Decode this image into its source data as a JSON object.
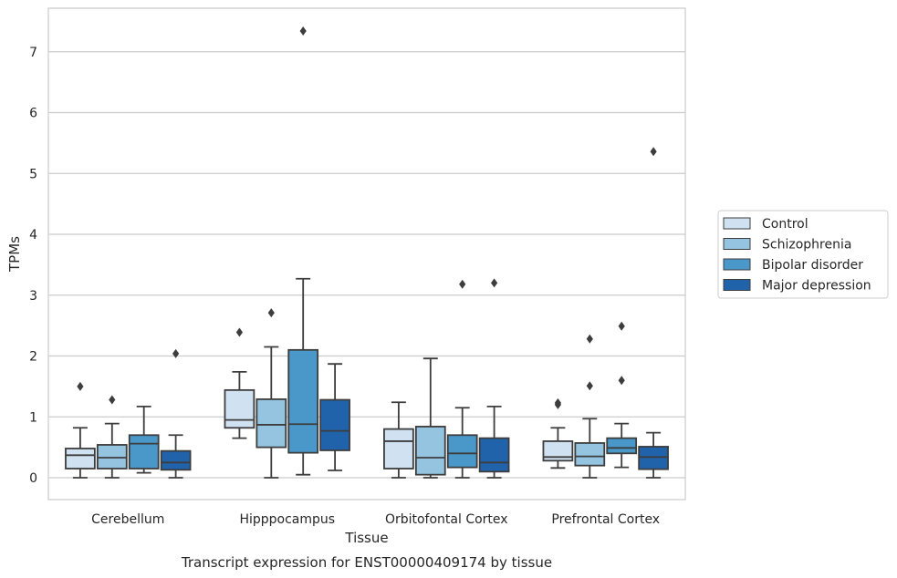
{
  "chart_data": {
    "type": "boxplot",
    "title": "Transcript expression for ENST00000409174 by tissue",
    "xlabel": "Tissue",
    "ylabel": "TPMs",
    "ylim": [
      -0.35,
      7.7
    ],
    "yticks": [
      0,
      1,
      2,
      3,
      4,
      5,
      6,
      7
    ],
    "grid": true,
    "legend_position": "right",
    "categories": [
      "Cerebellum",
      "Hipppocampus",
      "Orbitofontal Cortex",
      "Prefrontal Cortex"
    ],
    "series": [
      {
        "name": "Control",
        "color": "#d0e1f2",
        "boxes": [
          {
            "whislo": 0.0,
            "q1": 0.15,
            "med": 0.37,
            "q3": 0.48,
            "whishi": 0.82,
            "fliers": [
              1.5
            ]
          },
          {
            "whislo": 0.65,
            "q1": 0.82,
            "med": 0.95,
            "q3": 1.44,
            "whishi": 1.74,
            "fliers": [
              2.39
            ]
          },
          {
            "whislo": 0.0,
            "q1": 0.15,
            "med": 0.6,
            "q3": 0.8,
            "whishi": 1.24,
            "fliers": []
          },
          {
            "whislo": 0.16,
            "q1": 0.28,
            "med": 0.34,
            "q3": 0.6,
            "whishi": 0.82,
            "fliers": [
              1.2,
              1.23
            ]
          }
        ]
      },
      {
        "name": "Schizophrenia",
        "color": "#94c4df",
        "boxes": [
          {
            "whislo": 0.0,
            "q1": 0.15,
            "med": 0.33,
            "q3": 0.54,
            "whishi": 0.89,
            "fliers": [
              1.28
            ]
          },
          {
            "whislo": 0.0,
            "q1": 0.5,
            "med": 0.87,
            "q3": 1.29,
            "whishi": 2.15,
            "fliers": [
              2.71
            ]
          },
          {
            "whislo": 0.0,
            "q1": 0.05,
            "med": 0.33,
            "q3": 0.84,
            "whishi": 1.96,
            "fliers": []
          },
          {
            "whislo": 0.0,
            "q1": 0.2,
            "med": 0.35,
            "q3": 0.57,
            "whishi": 0.97,
            "fliers": [
              1.51,
              2.28
            ]
          }
        ]
      },
      {
        "name": "Bipolar disorder",
        "color": "#4a98c9",
        "boxes": [
          {
            "whislo": 0.08,
            "q1": 0.15,
            "med": 0.56,
            "q3": 0.7,
            "whishi": 1.17,
            "fliers": []
          },
          {
            "whislo": 0.05,
            "q1": 0.41,
            "med": 0.88,
            "q3": 2.1,
            "whishi": 3.27,
            "fliers": [
              7.34
            ]
          },
          {
            "whislo": 0.0,
            "q1": 0.17,
            "med": 0.4,
            "q3": 0.7,
            "whishi": 1.15,
            "fliers": [
              3.18
            ]
          },
          {
            "whislo": 0.17,
            "q1": 0.4,
            "med": 0.49,
            "q3": 0.65,
            "whishi": 0.89,
            "fliers": [
              1.6,
              2.49
            ]
          }
        ]
      },
      {
        "name": "Major depression",
        "color": "#2163aa",
        "boxes": [
          {
            "whislo": 0.0,
            "q1": 0.13,
            "med": 0.25,
            "q3": 0.44,
            "whishi": 0.7,
            "fliers": [
              2.04
            ]
          },
          {
            "whislo": 0.12,
            "q1": 0.45,
            "med": 0.77,
            "q3": 1.28,
            "whishi": 1.87,
            "fliers": []
          },
          {
            "whislo": 0.0,
            "q1": 0.1,
            "med": 0.25,
            "q3": 0.65,
            "whishi": 1.17,
            "fliers": [
              3.2
            ]
          },
          {
            "whislo": 0.0,
            "q1": 0.14,
            "med": 0.34,
            "q3": 0.51,
            "whishi": 0.74,
            "fliers": [
              5.36
            ]
          }
        ]
      }
    ]
  }
}
